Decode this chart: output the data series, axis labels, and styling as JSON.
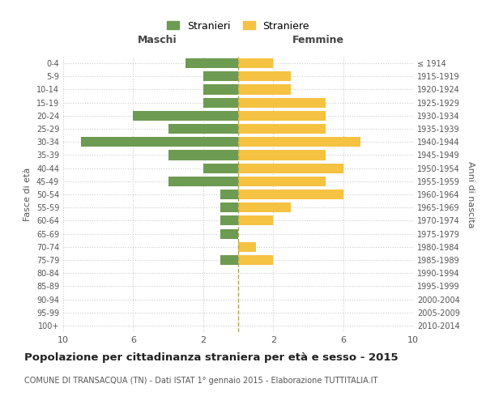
{
  "age_groups": [
    "0-4",
    "5-9",
    "10-14",
    "15-19",
    "20-24",
    "25-29",
    "30-34",
    "35-39",
    "40-44",
    "45-49",
    "50-54",
    "55-59",
    "60-64",
    "65-69",
    "70-74",
    "75-79",
    "80-84",
    "85-89",
    "90-94",
    "95-99",
    "100+"
  ],
  "birth_years": [
    "2010-2014",
    "2005-2009",
    "2000-2004",
    "1995-1999",
    "1990-1994",
    "1985-1989",
    "1980-1984",
    "1975-1979",
    "1970-1974",
    "1965-1969",
    "1960-1964",
    "1955-1959",
    "1950-1954",
    "1945-1949",
    "1940-1944",
    "1935-1939",
    "1930-1934",
    "1925-1929",
    "1920-1924",
    "1915-1919",
    "≤ 1914"
  ],
  "maschi": [
    3,
    2,
    2,
    2,
    6,
    4,
    9,
    4,
    2,
    4,
    1,
    1,
    1,
    1,
    0,
    1,
    0,
    0,
    0,
    0,
    0
  ],
  "femmine": [
    2,
    3,
    3,
    5,
    5,
    5,
    7,
    5,
    6,
    5,
    6,
    3,
    2,
    0,
    1,
    2,
    0,
    0,
    0,
    0,
    0
  ],
  "color_maschi": "#6d9b52",
  "color_femmine": "#f5c242",
  "title": "Popolazione per cittadinanza straniera per età e sesso - 2015",
  "subtitle": "COMUNE DI TRANSACQUA (TN) - Dati ISTAT 1° gennaio 2015 - Elaborazione TUTTITALIA.IT",
  "xlabel_left": "Maschi",
  "xlabel_right": "Femmine",
  "ylabel_left": "Fasce di età",
  "ylabel_right": "Anni di nascita",
  "legend_maschi": "Stranieri",
  "legend_femmine": "Straniere",
  "xlim": 10,
  "background_color": "#ffffff",
  "grid_color": "#cccccc"
}
